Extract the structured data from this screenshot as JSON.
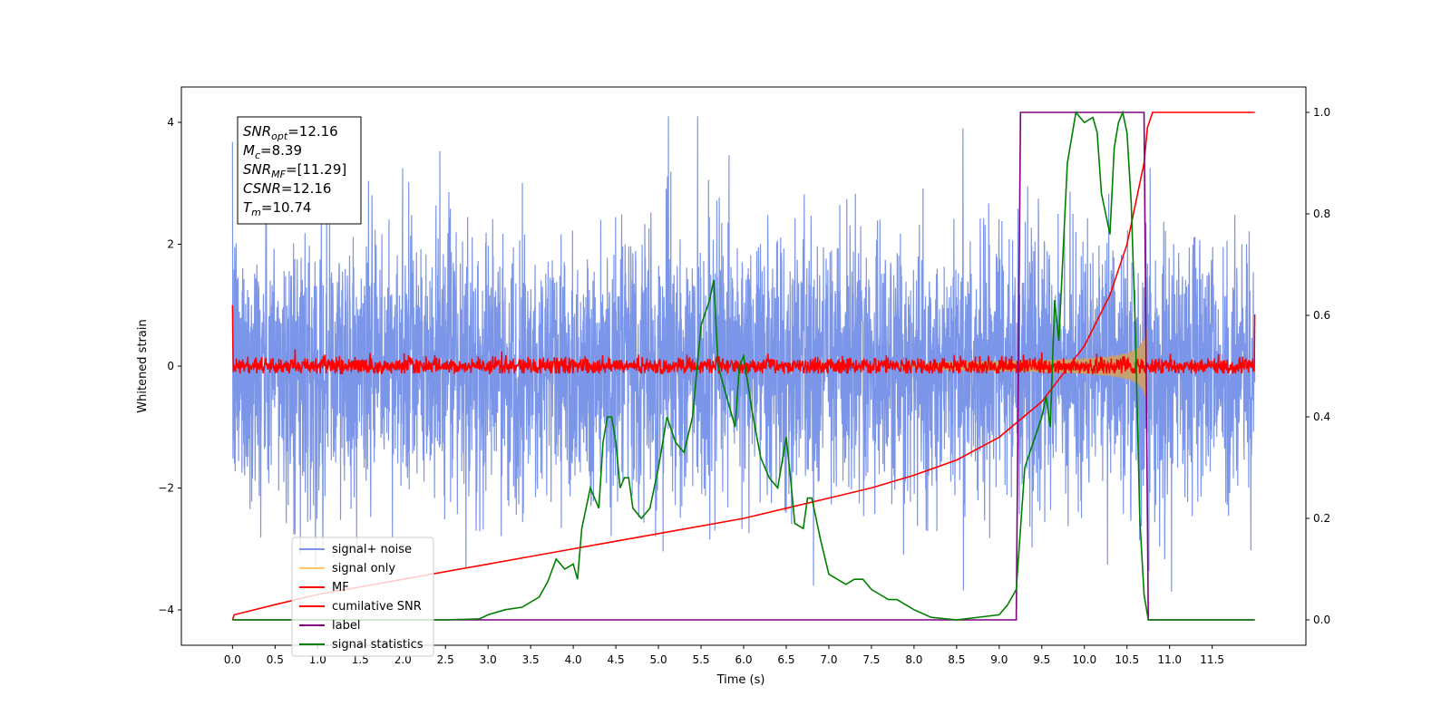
{
  "chart_data": {
    "type": "line",
    "xlabel": "Time (s)",
    "ylabel": "Whitened strain",
    "xlim": [
      -0.6,
      12.6
    ],
    "ylim_left": [
      -4.58,
      4.58
    ],
    "ylim_right": [
      -0.05,
      1.05
    ],
    "x_ticks": [
      0.0,
      0.5,
      1.0,
      1.5,
      2.0,
      2.5,
      3.0,
      3.5,
      4.0,
      4.5,
      5.0,
      5.5,
      6.0,
      6.5,
      7.0,
      7.5,
      8.0,
      8.5,
      9.0,
      9.5,
      10.0,
      10.5,
      11.0,
      11.5
    ],
    "x_tick_labels": [
      "0.0",
      "0.5",
      "1.0",
      "1.5",
      "2.0",
      "2.5",
      "3.0",
      "3.5",
      "4.0",
      "4.5",
      "5.0",
      "5.5",
      "6.0",
      "6.5",
      "7.0",
      "7.5",
      "8.0",
      "8.5",
      "9.0",
      "9.5",
      "10.0",
      "10.5",
      "11.0",
      "11.5"
    ],
    "y_ticks_left": [
      -4,
      -2,
      0,
      2,
      4
    ],
    "y_tick_labels_left": [
      "−4",
      "−2",
      "0",
      "2",
      "4"
    ],
    "y_ticks_right": [
      0.0,
      0.2,
      0.4,
      0.6,
      0.8,
      1.0
    ],
    "y_tick_labels_right": [
      "0.0",
      "0.2",
      "0.4",
      "0.6",
      "0.8",
      "1.0"
    ],
    "grid": false,
    "legend_placement": "lower-left",
    "colors": {
      "signal_noise": "#7b95e8",
      "signal_only": "#c8a070",
      "signal_only_legend": "#ffc966",
      "mf": "#ff0000",
      "cumulative_snr": "#ff0000",
      "label": "#800080",
      "signal_statistics": "#008000"
    },
    "annotation": [
      {
        "sym": "SNR",
        "sub": "opt",
        "val": "=12.16"
      },
      {
        "sym": "M",
        "sub": "c",
        "val": "=8.39"
      },
      {
        "sym": "SNR",
        "sub": "MF",
        "val": "=[11.29]"
      },
      {
        "sym": "CSNR",
        "sub": "",
        "val": "=12.16"
      },
      {
        "sym": "T",
        "sub": "m",
        "val": "=10.74"
      }
    ],
    "series": [
      {
        "name": "signal+ noise",
        "axis": "left",
        "envelope": {
          "typical": 1.6,
          "max": 4.1,
          "min": -3.7,
          "t_range": [
            0.0,
            12.0
          ]
        }
      },
      {
        "name": "signal only",
        "axis": "left",
        "chirp": {
          "t_start": 7.8,
          "t_end": 10.74,
          "amp_max": 0.8
        }
      },
      {
        "name": "MF",
        "axis": "left",
        "typical": 0.12,
        "max": 0.3,
        "start_value": 1.0,
        "end_value": 0.85
      },
      {
        "name": "cumilative SNR",
        "axis": "right",
        "x": [
          0.0,
          0.02,
          0.5,
          1.0,
          1.5,
          2.0,
          2.5,
          3.0,
          3.5,
          4.0,
          4.5,
          5.0,
          5.5,
          6.0,
          6.5,
          7.0,
          7.5,
          8.0,
          8.5,
          9.0,
          9.5,
          10.0,
          10.3,
          10.5,
          10.6,
          10.7,
          10.74,
          10.8,
          12.0
        ],
        "y": [
          0.0,
          0.01,
          0.03,
          0.05,
          0.065,
          0.08,
          0.095,
          0.11,
          0.125,
          0.14,
          0.155,
          0.17,
          0.185,
          0.2,
          0.22,
          0.24,
          0.26,
          0.285,
          0.315,
          0.36,
          0.43,
          0.54,
          0.64,
          0.74,
          0.82,
          0.9,
          0.97,
          1.0,
          1.0
        ]
      },
      {
        "name": "label",
        "axis": "right",
        "x": [
          0.0,
          9.2,
          9.25,
          10.7,
          10.75,
          12.0
        ],
        "y": [
          0.0,
          0.0,
          1.0,
          1.0,
          0.0,
          0.0
        ]
      },
      {
        "name": "signal statistics",
        "axis": "right",
        "x": [
          0.0,
          0.5,
          1.0,
          1.5,
          2.0,
          2.5,
          2.9,
          3.0,
          3.2,
          3.4,
          3.6,
          3.7,
          3.8,
          3.9,
          4.0,
          4.05,
          4.1,
          4.2,
          4.3,
          4.35,
          4.4,
          4.45,
          4.5,
          4.55,
          4.6,
          4.65,
          4.7,
          4.8,
          4.9,
          5.0,
          5.1,
          5.2,
          5.3,
          5.4,
          5.5,
          5.6,
          5.65,
          5.7,
          5.8,
          5.9,
          5.95,
          6.0,
          6.1,
          6.2,
          6.3,
          6.4,
          6.5,
          6.55,
          6.6,
          6.7,
          6.75,
          6.8,
          6.9,
          7.0,
          7.1,
          7.2,
          7.3,
          7.4,
          7.5,
          7.6,
          7.7,
          7.8,
          7.9,
          8.0,
          8.2,
          8.5,
          9.0,
          9.1,
          9.2,
          9.3,
          9.4,
          9.5,
          9.55,
          9.6,
          9.65,
          9.7,
          9.8,
          9.85,
          9.9,
          9.95,
          10.0,
          10.1,
          10.15,
          10.2,
          10.25,
          10.3,
          10.35,
          10.4,
          10.45,
          10.5,
          10.55,
          10.6,
          10.65,
          10.7,
          10.75,
          10.8,
          11.0,
          11.5,
          12.0
        ],
        "y": [
          0.0,
          0.0,
          0.0,
          0.0,
          0.0,
          0.0,
          0.002,
          0.01,
          0.02,
          0.025,
          0.045,
          0.075,
          0.12,
          0.1,
          0.11,
          0.08,
          0.18,
          0.26,
          0.22,
          0.35,
          0.4,
          0.4,
          0.35,
          0.26,
          0.28,
          0.28,
          0.22,
          0.2,
          0.22,
          0.3,
          0.4,
          0.35,
          0.33,
          0.4,
          0.58,
          0.63,
          0.67,
          0.5,
          0.44,
          0.38,
          0.5,
          0.52,
          0.41,
          0.32,
          0.28,
          0.26,
          0.36,
          0.28,
          0.19,
          0.18,
          0.24,
          0.24,
          0.16,
          0.09,
          0.08,
          0.07,
          0.08,
          0.08,
          0.06,
          0.05,
          0.04,
          0.04,
          0.03,
          0.02,
          0.005,
          0.0,
          0.01,
          0.03,
          0.06,
          0.3,
          0.35,
          0.4,
          0.44,
          0.38,
          0.63,
          0.55,
          0.9,
          0.95,
          1.0,
          0.99,
          0.98,
          0.99,
          0.96,
          0.84,
          0.8,
          0.76,
          0.93,
          0.98,
          1.0,
          0.96,
          0.82,
          0.56,
          0.2,
          0.05,
          0.0,
          0.0,
          0.0,
          0.0,
          0.0
        ]
      }
    ],
    "legend": [
      {
        "label": "signal+ noise",
        "series": "signal_noise"
      },
      {
        "label": "signal only",
        "series": "signal_only_legend"
      },
      {
        "label": "MF",
        "series": "mf"
      },
      {
        "label": "cumilative SNR",
        "series": "cumulative_snr"
      },
      {
        "label": "label",
        "series": "label"
      },
      {
        "label": "signal statistics",
        "series": "signal_statistics"
      }
    ]
  }
}
